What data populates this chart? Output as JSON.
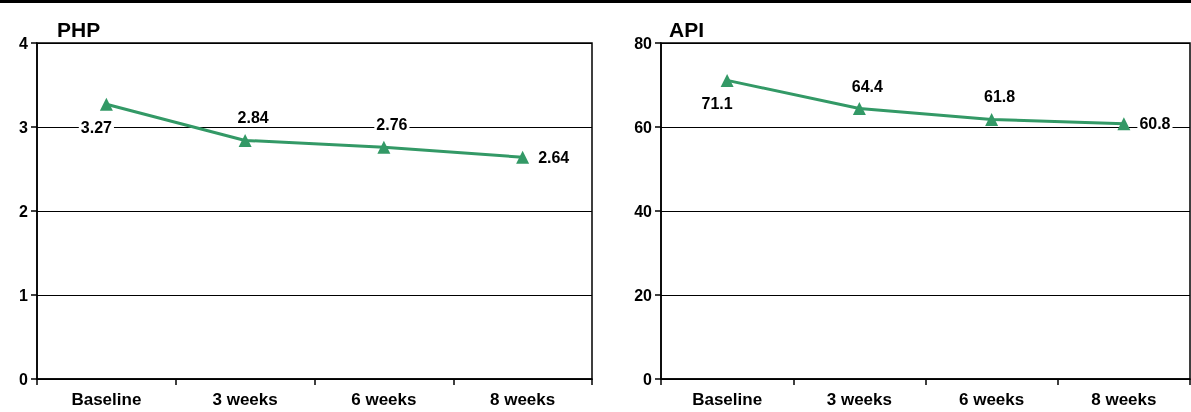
{
  "chart_data": [
    {
      "type": "line",
      "title": "PHP",
      "categories": [
        "Baseline",
        "3 weeks",
        "6 weeks",
        "8 weeks"
      ],
      "series": [
        {
          "color": "#339966",
          "values": [
            3.27,
            2.84,
            2.76,
            2.64
          ]
        }
      ],
      "ylim": [
        0,
        4
      ],
      "yticks": [
        0,
        1,
        2,
        3,
        4
      ],
      "grid": "y",
      "marker": "triangle",
      "line_style": "solid",
      "data_labels": true
    },
    {
      "type": "line",
      "title": "API",
      "categories": [
        "Baseline",
        "3 weeks",
        "6 weeks",
        "8 weeks"
      ],
      "series": [
        {
          "color": "#339966",
          "values": [
            71.1,
            64.4,
            61.8,
            60.8
          ]
        }
      ],
      "ylim": [
        0,
        80
      ],
      "yticks": [
        0,
        20,
        40,
        60,
        80
      ],
      "grid": "y",
      "marker": "triangle",
      "line_style": "solid",
      "data_labels": true
    }
  ]
}
